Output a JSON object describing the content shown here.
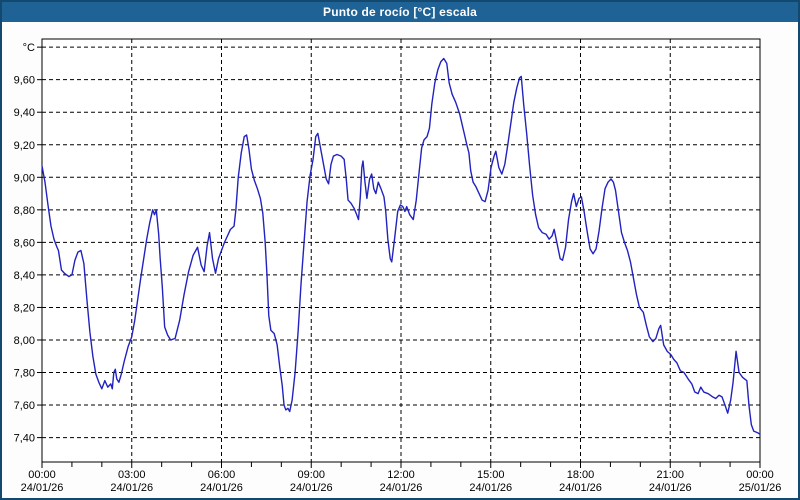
{
  "window": {
    "title": "Punto de rocío [°C] escala"
  },
  "colors": {
    "titlebar_bg": "#1F6396",
    "window_border": "#14496F",
    "series_line": "#2222BF",
    "grid_line": "#000000",
    "plot_background": "#FFFFFF"
  },
  "chart_data": {
    "type": "line",
    "title": "Punto de rocío [°C] escala",
    "y_unit": "°C",
    "ylabel": "",
    "xlabel": "",
    "grid": true,
    "legend": "none",
    "ylim": [
      7.25,
      9.85
    ],
    "ytick_values": [
      9.8,
      9.6,
      9.4,
      9.2,
      9.0,
      8.8,
      8.6,
      8.4,
      8.2,
      8.0,
      7.8,
      7.6,
      7.4
    ],
    "ytick_labels": [
      "",
      "9,60",
      "9,40",
      "9,20",
      "9,00",
      "8,80",
      "8,60",
      "8,40",
      "8,20",
      "8,00",
      "7,80",
      "7,60",
      "7,40"
    ],
    "xlim_hours": [
      0,
      24
    ],
    "x_major_step_hours": 3,
    "x_minor_step_hours": 1,
    "x_major_tick_hours": [
      0,
      3,
      6,
      9,
      12,
      15,
      18,
      21,
      24
    ],
    "x_tick_times": [
      "00:00",
      "03:00",
      "06:00",
      "09:00",
      "12:00",
      "15:00",
      "18:00",
      "21:00",
      "00:00"
    ],
    "x_tick_dates": [
      "24/01/26",
      "24/01/26",
      "24/01/26",
      "24/01/26",
      "24/01/26",
      "24/01/26",
      "24/01/26",
      "24/01/26",
      "25/01/26"
    ],
    "series": [
      {
        "name": "Punto de rocío",
        "color": "#2222BF",
        "points": [
          [
            0,
            9.07
          ],
          [
            0.1,
            8.97
          ],
          [
            0.2,
            8.83
          ],
          [
            0.3,
            8.7
          ],
          [
            0.4,
            8.62
          ],
          [
            0.5,
            8.57
          ],
          [
            0.55,
            8.55
          ],
          [
            0.65,
            8.43
          ],
          [
            0.75,
            8.41
          ],
          [
            0.9,
            8.39
          ],
          [
            1,
            8.4
          ],
          [
            1.1,
            8.49
          ],
          [
            1.2,
            8.54
          ],
          [
            1.3,
            8.55
          ],
          [
            1.4,
            8.47
          ],
          [
            1.5,
            8.25
          ],
          [
            1.6,
            8.05
          ],
          [
            1.7,
            7.9
          ],
          [
            1.8,
            7.79
          ],
          [
            1.9,
            7.74
          ],
          [
            2,
            7.7
          ],
          [
            2.1,
            7.75
          ],
          [
            2.2,
            7.71
          ],
          [
            2.3,
            7.73
          ],
          [
            2.35,
            7.7
          ],
          [
            2.4,
            7.8
          ],
          [
            2.45,
            7.82
          ],
          [
            2.5,
            7.76
          ],
          [
            2.57,
            7.74
          ],
          [
            2.65,
            7.79
          ],
          [
            2.75,
            7.87
          ],
          [
            2.88,
            7.96
          ],
          [
            3,
            8.02
          ],
          [
            3.1,
            8.12
          ],
          [
            3.2,
            8.25
          ],
          [
            3.3,
            8.38
          ],
          [
            3.4,
            8.5
          ],
          [
            3.5,
            8.62
          ],
          [
            3.6,
            8.72
          ],
          [
            3.7,
            8.8
          ],
          [
            3.76,
            8.77
          ],
          [
            3.82,
            8.8
          ],
          [
            3.9,
            8.65
          ],
          [
            3.95,
            8.5
          ],
          [
            4.02,
            8.33
          ],
          [
            4.1,
            8.08
          ],
          [
            4.2,
            8.03
          ],
          [
            4.3,
            8.0
          ],
          [
            4.45,
            8.01
          ],
          [
            4.6,
            8.12
          ],
          [
            4.75,
            8.28
          ],
          [
            4.9,
            8.42
          ],
          [
            5.05,
            8.52
          ],
          [
            5.2,
            8.57
          ],
          [
            5.32,
            8.46
          ],
          [
            5.42,
            8.42
          ],
          [
            5.52,
            8.58
          ],
          [
            5.6,
            8.66
          ],
          [
            5.7,
            8.5
          ],
          [
            5.8,
            8.41
          ],
          [
            5.9,
            8.5
          ],
          [
            6,
            8.55
          ],
          [
            6.1,
            8.6
          ],
          [
            6.2,
            8.64
          ],
          [
            6.3,
            8.68
          ],
          [
            6.42,
            8.7
          ],
          [
            6.48,
            8.8
          ],
          [
            6.56,
            9.0
          ],
          [
            6.66,
            9.15
          ],
          [
            6.76,
            9.25
          ],
          [
            6.84,
            9.26
          ],
          [
            6.92,
            9.17
          ],
          [
            7,
            9.05
          ],
          [
            7.1,
            8.98
          ],
          [
            7.2,
            8.93
          ],
          [
            7.3,
            8.87
          ],
          [
            7.38,
            8.78
          ],
          [
            7.46,
            8.6
          ],
          [
            7.52,
            8.4
          ],
          [
            7.58,
            8.15
          ],
          [
            7.65,
            8.06
          ],
          [
            7.76,
            8.04
          ],
          [
            7.86,
            7.97
          ],
          [
            7.95,
            7.83
          ],
          [
            8.03,
            7.72
          ],
          [
            8.09,
            7.6
          ],
          [
            8.15,
            7.57
          ],
          [
            8.22,
            7.58
          ],
          [
            8.28,
            7.56
          ],
          [
            8.36,
            7.63
          ],
          [
            8.46,
            7.8
          ],
          [
            8.56,
            8.05
          ],
          [
            8.66,
            8.35
          ],
          [
            8.76,
            8.6
          ],
          [
            8.86,
            8.85
          ],
          [
            8.96,
            9.01
          ],
          [
            9.06,
            9.11
          ],
          [
            9.15,
            9.25
          ],
          [
            9.22,
            9.27
          ],
          [
            9.32,
            9.17
          ],
          [
            9.42,
            9.07
          ],
          [
            9.5,
            8.99
          ],
          [
            9.58,
            8.96
          ],
          [
            9.66,
            9.08
          ],
          [
            9.74,
            9.13
          ],
          [
            9.86,
            9.14
          ],
          [
            10,
            9.13
          ],
          [
            10.1,
            9.11
          ],
          [
            10.17,
            8.99
          ],
          [
            10.23,
            8.86
          ],
          [
            10.33,
            8.84
          ],
          [
            10.43,
            8.81
          ],
          [
            10.52,
            8.77
          ],
          [
            10.58,
            8.74
          ],
          [
            10.64,
            8.88
          ],
          [
            10.69,
            9.06
          ],
          [
            10.73,
            9.1
          ],
          [
            10.79,
            8.98
          ],
          [
            10.86,
            8.87
          ],
          [
            10.95,
            8.99
          ],
          [
            11.02,
            9.02
          ],
          [
            11.09,
            8.93
          ],
          [
            11.16,
            8.9
          ],
          [
            11.24,
            8.97
          ],
          [
            11.33,
            8.93
          ],
          [
            11.43,
            8.88
          ],
          [
            11.49,
            8.79
          ],
          [
            11.56,
            8.62
          ],
          [
            11.64,
            8.5
          ],
          [
            11.69,
            8.48
          ],
          [
            11.79,
            8.63
          ],
          [
            11.89,
            8.79
          ],
          [
            11.98,
            8.83
          ],
          [
            12.06,
            8.82
          ],
          [
            12.13,
            8.79
          ],
          [
            12.19,
            8.82
          ],
          [
            12.29,
            8.77
          ],
          [
            12.41,
            8.74
          ],
          [
            12.51,
            8.86
          ],
          [
            12.61,
            9.04
          ],
          [
            12.69,
            9.18
          ],
          [
            12.77,
            9.23
          ],
          [
            12.87,
            9.25
          ],
          [
            12.95,
            9.3
          ],
          [
            13.03,
            9.45
          ],
          [
            13.13,
            9.58
          ],
          [
            13.23,
            9.66
          ],
          [
            13.33,
            9.71
          ],
          [
            13.43,
            9.73
          ],
          [
            13.53,
            9.7
          ],
          [
            13.61,
            9.58
          ],
          [
            13.71,
            9.51
          ],
          [
            13.83,
            9.46
          ],
          [
            13.96,
            9.39
          ],
          [
            14.1,
            9.28
          ],
          [
            14.2,
            9.2
          ],
          [
            14.27,
            9.15
          ],
          [
            14.33,
            9.04
          ],
          [
            14.41,
            8.97
          ],
          [
            14.51,
            8.94
          ],
          [
            14.61,
            8.9
          ],
          [
            14.71,
            8.86
          ],
          [
            14.81,
            8.85
          ],
          [
            14.91,
            8.92
          ],
          [
            15.01,
            9.06
          ],
          [
            15.11,
            9.13
          ],
          [
            15.17,
            9.16
          ],
          [
            15.27,
            9.06
          ],
          [
            15.37,
            9.02
          ],
          [
            15.47,
            9.08
          ],
          [
            15.57,
            9.2
          ],
          [
            15.67,
            9.33
          ],
          [
            15.77,
            9.46
          ],
          [
            15.87,
            9.55
          ],
          [
            15.96,
            9.61
          ],
          [
            16.02,
            9.62
          ],
          [
            16.1,
            9.45
          ],
          [
            16.2,
            9.27
          ],
          [
            16.3,
            9.07
          ],
          [
            16.4,
            8.89
          ],
          [
            16.5,
            8.77
          ],
          [
            16.6,
            8.69
          ],
          [
            16.72,
            8.66
          ],
          [
            16.85,
            8.65
          ],
          [
            16.95,
            8.62
          ],
          [
            17.05,
            8.64
          ],
          [
            17.12,
            8.68
          ],
          [
            17.22,
            8.59
          ],
          [
            17.32,
            8.5
          ],
          [
            17.4,
            8.49
          ],
          [
            17.5,
            8.57
          ],
          [
            17.6,
            8.74
          ],
          [
            17.7,
            8.85
          ],
          [
            17.77,
            8.9
          ],
          [
            17.86,
            8.82
          ],
          [
            17.95,
            8.87
          ],
          [
            18.03,
            8.88
          ],
          [
            18.12,
            8.79
          ],
          [
            18.22,
            8.67
          ],
          [
            18.32,
            8.56
          ],
          [
            18.42,
            8.53
          ],
          [
            18.52,
            8.56
          ],
          [
            18.62,
            8.67
          ],
          [
            18.72,
            8.81
          ],
          [
            18.82,
            8.93
          ],
          [
            18.92,
            8.97
          ],
          [
            19.02,
            8.99
          ],
          [
            19.1,
            8.97
          ],
          [
            19.17,
            8.92
          ],
          [
            19.27,
            8.79
          ],
          [
            19.37,
            8.66
          ],
          [
            19.47,
            8.6
          ],
          [
            19.57,
            8.55
          ],
          [
            19.67,
            8.48
          ],
          [
            19.77,
            8.38
          ],
          [
            19.87,
            8.28
          ],
          [
            19.97,
            8.2
          ],
          [
            20.1,
            8.17
          ],
          [
            20.2,
            8.09
          ],
          [
            20.3,
            8.02
          ],
          [
            20.42,
            7.99
          ],
          [
            20.52,
            8.01
          ],
          [
            20.62,
            8.07
          ],
          [
            20.68,
            8.09
          ],
          [
            20.78,
            7.97
          ],
          [
            20.9,
            7.93
          ],
          [
            21.02,
            7.91
          ],
          [
            21.12,
            7.88
          ],
          [
            21.22,
            7.86
          ],
          [
            21.34,
            7.81
          ],
          [
            21.46,
            7.8
          ],
          [
            21.6,
            7.76
          ],
          [
            21.72,
            7.73
          ],
          [
            21.82,
            7.68
          ],
          [
            21.93,
            7.67
          ],
          [
            22.02,
            7.71
          ],
          [
            22.12,
            7.68
          ],
          [
            22.27,
            7.67
          ],
          [
            22.42,
            7.65
          ],
          [
            22.52,
            7.64
          ],
          [
            22.63,
            7.66
          ],
          [
            22.73,
            7.65
          ],
          [
            22.83,
            7.6
          ],
          [
            22.92,
            7.55
          ],
          [
            23.02,
            7.63
          ],
          [
            23.1,
            7.74
          ],
          [
            23.2,
            7.93
          ],
          [
            23.3,
            7.8
          ],
          [
            23.42,
            7.77
          ],
          [
            23.56,
            7.75
          ],
          [
            23.63,
            7.6
          ],
          [
            23.71,
            7.48
          ],
          [
            23.79,
            7.44
          ],
          [
            23.92,
            7.43
          ],
          [
            24,
            7.42
          ]
        ]
      }
    ]
  }
}
